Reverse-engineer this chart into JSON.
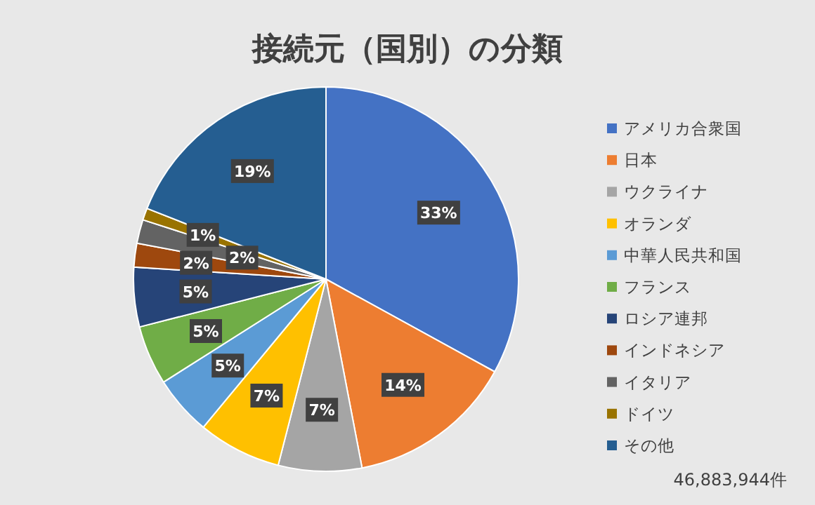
{
  "chart_data": {
    "type": "pie",
    "title": "接続元（国別）の分類",
    "categories": [
      "アメリカ合衆国",
      "日本",
      "ウクライナ",
      "オランダ",
      "中華人民共和国",
      "フランス",
      "ロシア連邦",
      "インドネシア",
      "イタリア",
      "ドイツ",
      "その他"
    ],
    "values": [
      33,
      14,
      7,
      7,
      5,
      5,
      5,
      2,
      2,
      1,
      19
    ],
    "value_labels": [
      "33%",
      "14%",
      "7%",
      "7%",
      "5%",
      "5%",
      "5%",
      "2%",
      "2%",
      "1%",
      "19%"
    ],
    "colors": [
      "#4472c4",
      "#ed7d31",
      "#a5a5a5",
      "#ffc000",
      "#5b9bd5",
      "#70ad47",
      "#264478",
      "#9e480e",
      "#636363",
      "#997300",
      "#255e91"
    ],
    "legend": "right",
    "annotations": [
      "46,883,944件"
    ]
  }
}
